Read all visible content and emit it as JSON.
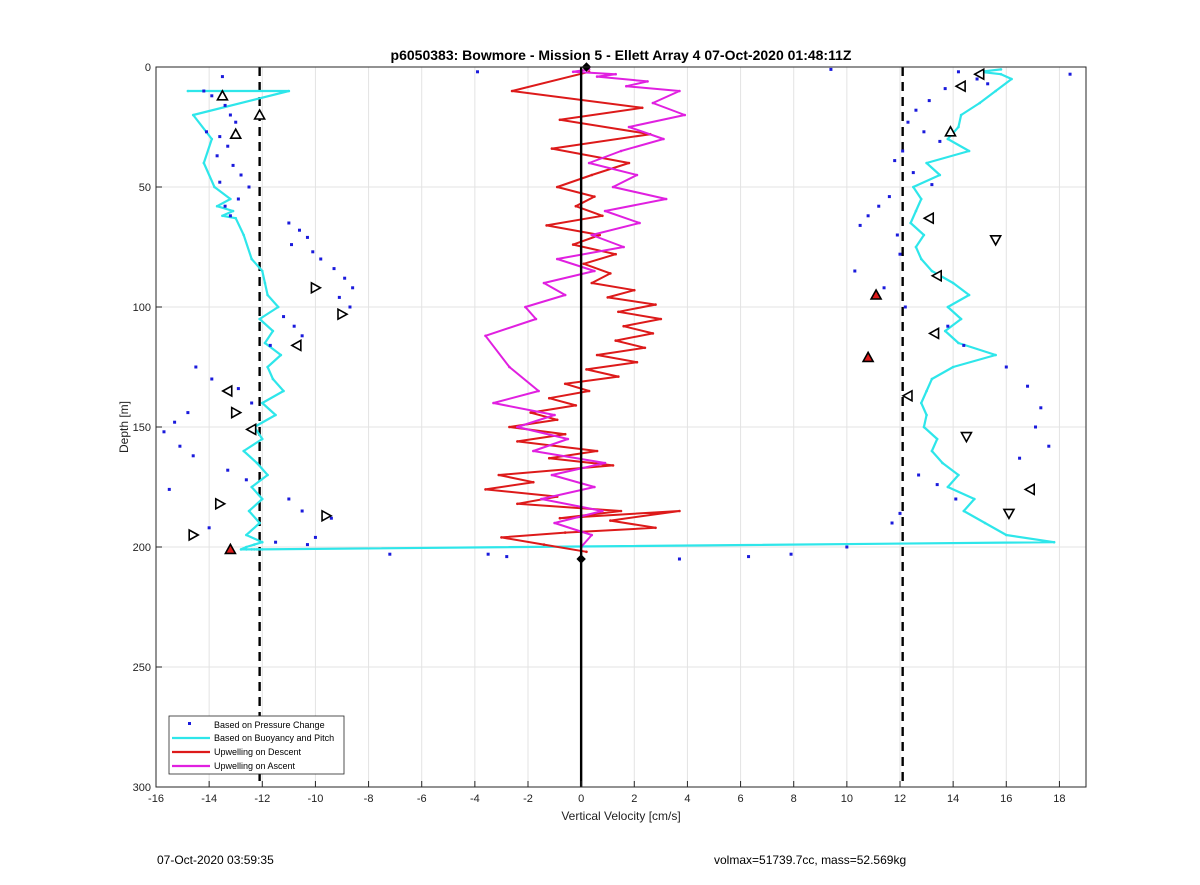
{
  "chart_data": {
    "type": "line",
    "title": "p6050383: Bowmore - Mission 5 - Ellett Array 4 07-Oct-2020 01:48:11Z",
    "xlabel": "Vertical Velocity [cm/s]",
    "ylabel": "Depth [m]",
    "xlim": [
      -16,
      19
    ],
    "ylim": [
      300,
      0
    ],
    "y_reversed": true,
    "x_ticks": [
      -16,
      -14,
      -12,
      -10,
      -8,
      -6,
      -4,
      -2,
      0,
      2,
      4,
      6,
      8,
      10,
      12,
      14,
      16,
      18
    ],
    "y_ticks": [
      0,
      50,
      100,
      150,
      200,
      250,
      300
    ],
    "grid": true,
    "legend_position": "bottom-left",
    "legend": [
      "Based on Pressure Change",
      "Based on Buoyancy and Pitch",
      "Upwelling on Descent",
      "Upwelling on Ascent"
    ],
    "reference_lines": [
      {
        "x": -12.1,
        "style": "dashed"
      },
      {
        "x": 12.1,
        "style": "dashed"
      },
      {
        "x": 0,
        "style": "solid"
      }
    ],
    "series": [
      {
        "name": "Based on Pressure Change",
        "style": "points",
        "color": "#1a1adc",
        "x": [
          -13.5,
          -14.2,
          -13.9,
          -13.4,
          -13.2,
          -13.0,
          -14.1,
          -13.6,
          -13.3,
          -13.7,
          -13.1,
          -12.8,
          -12.5,
          -12.9,
          -13.4,
          -13.2,
          -13.6,
          -11.0,
          -10.6,
          -10.3,
          -10.9,
          -10.1,
          -9.8,
          -9.3,
          -8.9,
          -8.6,
          -9.1,
          -8.7,
          -11.2,
          -10.8,
          -10.5,
          -11.7,
          -14.5,
          -13.9,
          -12.9,
          -12.4,
          -14.8,
          -15.3,
          -15.7,
          -15.1,
          -14.6,
          -13.3,
          -12.6,
          -15.5,
          -11.0,
          -10.5,
          -9.4,
          -14.0,
          -10.0,
          -10.3,
          -11.5,
          -7.2,
          -3.5,
          -2.8,
          3.7,
          6.3,
          7.9,
          10.0,
          -3.9,
          9.4,
          14.2,
          14.9,
          13.7,
          13.1,
          12.6,
          12.3,
          12.9,
          13.5,
          12.1,
          11.8,
          12.5,
          13.2,
          11.6,
          11.2,
          10.8,
          10.5,
          11.9,
          12.0,
          10.3,
          11.4,
          12.2,
          13.8,
          14.4,
          16.0,
          16.8,
          17.3,
          17.1,
          17.6,
          16.5,
          12.7,
          13.4,
          14.1,
          12.0,
          11.7,
          18.4,
          15.3
        ],
        "y": [
          4,
          10,
          12,
          16,
          20,
          23,
          27,
          29,
          33,
          37,
          41,
          45,
          50,
          55,
          58,
          62,
          48,
          65,
          68,
          71,
          74,
          77,
          80,
          84,
          88,
          92,
          96,
          100,
          104,
          108,
          112,
          116,
          125,
          130,
          134,
          140,
          144,
          148,
          152,
          158,
          162,
          168,
          172,
          176,
          180,
          185,
          188,
          192,
          196,
          199,
          198,
          203,
          203,
          204,
          205,
          204,
          203,
          200,
          2,
          1,
          2,
          5,
          9,
          14,
          18,
          23,
          27,
          31,
          35,
          39,
          44,
          49,
          54,
          58,
          62,
          66,
          70,
          78,
          85,
          92,
          100,
          108,
          116,
          125,
          133,
          142,
          150,
          158,
          163,
          170,
          174,
          180,
          186,
          190,
          3,
          7
        ]
      },
      {
        "name": "Based on Buoyancy and Pitch",
        "style": "line",
        "color": "#2ee6ea",
        "x": [
          -14.8,
          -11.0,
          -14.6,
          -13.9,
          -14.2,
          -13.8,
          -13.2,
          -13.7,
          -13.1,
          -13.5,
          -13.0,
          -12.7,
          -12.4,
          -12.0,
          -11.9,
          -11.8,
          -11.4,
          -12.1,
          -11.6,
          -11.9,
          -11.3,
          -11.8,
          -11.6,
          -11.2,
          -12.0,
          -11.5,
          -12.3,
          -12.0,
          -12.7,
          -12.2,
          -11.8,
          -12.4,
          -12.0,
          -12.5,
          -12.1,
          -12.6,
          -12.0,
          -12.3,
          -12.6,
          -12.8,
          -12.3,
          -12.6,
          -12.0,
          -12.2,
          -12.4,
          -12.1,
          17.8,
          16.0,
          15.2,
          14.4,
          14.8,
          13.8,
          14.2,
          13.6,
          13.2,
          13.4,
          12.9,
          13.0,
          12.8,
          13.0,
          13.2,
          14.0,
          15.6,
          14.2,
          13.7,
          14.3,
          13.8,
          14.6,
          14.0,
          13.2,
          12.8,
          12.6,
          12.9,
          12.4,
          12.6,
          12.8,
          12.5,
          13.5,
          13.0,
          14.6,
          13.8,
          14.2,
          14.3,
          15.0,
          15.6,
          16.2,
          15.8,
          15.0,
          15.8
        ],
        "y": [
          10,
          10,
          20,
          30,
          40,
          50,
          55,
          58,
          60,
          62,
          63,
          70,
          80,
          85,
          90,
          95,
          100,
          105,
          110,
          115,
          120,
          125,
          130,
          135,
          140,
          145,
          150,
          155,
          160,
          165,
          170,
          175,
          180,
          185,
          190,
          195,
          198,
          199,
          200,
          201,
          201,
          201,
          201,
          201,
          201,
          201,
          198,
          195,
          190,
          185,
          180,
          175,
          170,
          165,
          160,
          155,
          150,
          145,
          140,
          135,
          130,
          125,
          120,
          115,
          110,
          105,
          100,
          95,
          90,
          85,
          80,
          75,
          70,
          65,
          60,
          55,
          50,
          45,
          40,
          35,
          30,
          25,
          20,
          15,
          10,
          5,
          3,
          2,
          1
        ]
      },
      {
        "name": "Upwelling on Descent",
        "style": "line",
        "color": "#dd1a1a",
        "x": [
          0.3,
          -2.6,
          2.3,
          -0.8,
          2.6,
          -1.1,
          1.8,
          0.4,
          -0.9,
          0.5,
          -0.2,
          0.8,
          -1.3,
          0.7,
          -0.3,
          1.3,
          0.1,
          1.1,
          0.4,
          2.0,
          1.0,
          2.8,
          1.4,
          3.0,
          1.6,
          2.7,
          1.3,
          2.4,
          0.6,
          2.1,
          0.2,
          1.4,
          -0.6,
          0.3,
          -1.2,
          -0.2,
          -1.9,
          -0.9,
          -2.7,
          -0.6,
          -2.4,
          0.6,
          -1.2,
          1.2,
          -3.1,
          -1.8,
          -3.6,
          -0.9,
          -2.4,
          1.5,
          -0.8,
          3.7,
          1.1,
          2.8,
          -0.6,
          -3.0,
          -1.4,
          0.2
        ],
        "y": [
          2,
          10,
          17,
          22,
          28,
          34,
          40,
          45,
          50,
          54,
          58,
          62,
          66,
          70,
          74,
          78,
          82,
          86,
          90,
          93,
          96,
          99,
          102,
          105,
          108,
          111,
          114,
          117,
          120,
          123,
          126,
          129,
          132,
          135,
          138,
          141,
          144,
          147,
          150,
          153,
          156,
          160,
          163,
          166,
          170,
          173,
          176,
          179,
          182,
          185,
          188,
          185,
          189,
          192,
          194,
          196,
          199,
          202
        ]
      },
      {
        "name": "Upwelling on Ascent",
        "style": "line",
        "color": "#e020e0",
        "x": [
          0.0,
          0.4,
          -1.0,
          0.8,
          -1.5,
          0.5,
          -1.1,
          0.9,
          -1.8,
          -0.5,
          -2.4,
          -1.0,
          -3.3,
          -1.6,
          -2.7,
          -3.6,
          -1.7,
          -2.1,
          -0.6,
          -1.4,
          0.5,
          -0.9,
          1.6,
          0.4,
          2.2,
          0.9,
          3.2,
          1.2,
          2.1,
          0.3,
          1.5,
          3.1,
          1.8,
          3.9,
          2.7,
          3.7,
          1.7,
          2.5,
          0.6,
          1.3,
          -0.3,
          0.3
        ],
        "y": [
          200,
          195,
          190,
          185,
          180,
          175,
          170,
          165,
          160,
          155,
          150,
          145,
          140,
          135,
          125,
          112,
          105,
          100,
          95,
          90,
          85,
          80,
          75,
          70,
          65,
          60,
          55,
          50,
          45,
          40,
          35,
          30,
          25,
          20,
          15,
          10,
          8,
          6,
          4,
          3,
          2,
          1
        ]
      }
    ],
    "markers": [
      {
        "kind": "triangle-up",
        "x": -13.5,
        "y": 12
      },
      {
        "kind": "triangle-up",
        "x": -12.1,
        "y": 20
      },
      {
        "kind": "triangle-up",
        "x": -13.0,
        "y": 28
      },
      {
        "kind": "triangle-right",
        "x": -10.0,
        "y": 92
      },
      {
        "kind": "triangle-right",
        "x": -9.0,
        "y": 103
      },
      {
        "kind": "triangle-left",
        "x": -10.7,
        "y": 116
      },
      {
        "kind": "triangle-left",
        "x": -13.3,
        "y": 135
      },
      {
        "kind": "triangle-right",
        "x": -13.0,
        "y": 144
      },
      {
        "kind": "triangle-left",
        "x": -12.4,
        "y": 151
      },
      {
        "kind": "triangle-right",
        "x": -13.6,
        "y": 182
      },
      {
        "kind": "triangle-right",
        "x": -9.6,
        "y": 187
      },
      {
        "kind": "triangle-right",
        "x": -14.6,
        "y": 195
      },
      {
        "kind": "triangle-up-red",
        "x": -13.2,
        "y": 201
      },
      {
        "kind": "diamond",
        "x": 0.2,
        "y": 0
      },
      {
        "kind": "diamond",
        "x": 0.0,
        "y": 205
      },
      {
        "kind": "triangle-left",
        "x": 15.0,
        "y": 3
      },
      {
        "kind": "triangle-left",
        "x": 14.3,
        "y": 8
      },
      {
        "kind": "triangle-up",
        "x": 13.9,
        "y": 27
      },
      {
        "kind": "triangle-left",
        "x": 13.1,
        "y": 63
      },
      {
        "kind": "triangle-down",
        "x": 15.6,
        "y": 72
      },
      {
        "kind": "triangle-left",
        "x": 13.4,
        "y": 87
      },
      {
        "kind": "triangle-up-red",
        "x": 11.1,
        "y": 95
      },
      {
        "kind": "triangle-left",
        "x": 13.3,
        "y": 111
      },
      {
        "kind": "triangle-up-red",
        "x": 10.8,
        "y": 121
      },
      {
        "kind": "triangle-left",
        "x": 12.3,
        "y": 137
      },
      {
        "kind": "triangle-down",
        "x": 14.5,
        "y": 154
      },
      {
        "kind": "triangle-left",
        "x": 16.9,
        "y": 176
      },
      {
        "kind": "triangle-down",
        "x": 16.1,
        "y": 186
      }
    ]
  },
  "footer": {
    "timestamp": "07-Oct-2020 03:59:35",
    "stats": "volmax=51739.7cc, mass=52.569kg"
  }
}
